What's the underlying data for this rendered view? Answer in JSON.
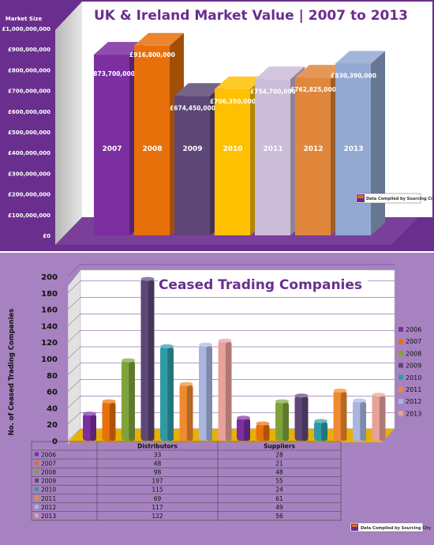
{
  "colors": {
    "frame_purple": "#6a2e8e",
    "panel_purple_light": "#a682c0",
    "year_colors": {
      "2006": "#7b2fa0",
      "2007": "#e8700a",
      "2008": "#7fa33a",
      "2009": "#5e4777",
      "2010": "#2f9aa6",
      "2011": "#f08a30",
      "2012": "#a9b6e0",
      "2013": "#e8a09a"
    }
  },
  "source_badge": "Data Compiled by Sourcing City",
  "chart_data": [
    {
      "type": "bar",
      "title": "UK & Ireland Market Value | 2007 to 2013",
      "ylabel": "Market Size",
      "categories": [
        "2007",
        "2008",
        "2009",
        "2010",
        "2011",
        "2012",
        "2013"
      ],
      "values": [
        873700000,
        916800000,
        674450000,
        706350000,
        754700000,
        762825000,
        830390000
      ],
      "data_labels": [
        "£873,700,000",
        "£916,800,000",
        "£674,450,000",
        "£706,350,000",
        "£754,700,000",
        "£762,825,000",
        "£830,390,000"
      ],
      "bar_colors": [
        "#7b2fa0",
        "#e8700a",
        "#5e4777",
        "#ffc000",
        "#cbbcd8",
        "#e0873c",
        "#93a9d2"
      ],
      "ylim": [
        0,
        1000000000
      ],
      "yticks": [
        "£0",
        "£100,000,000",
        "£200,000,000",
        "£300,000,000",
        "£400,000,000",
        "£500,000,000",
        "£600,000,000",
        "£700,000,000",
        "£800,000,000",
        "£900,000,000",
        "£1,000,000,000"
      ],
      "grid": false,
      "style": "3d"
    },
    {
      "type": "bar",
      "title": "Ceased Trading Companies",
      "ylabel": "No. of Ceased Trading Companies",
      "categories": [
        "Distributors",
        "Suppliers"
      ],
      "series": [
        {
          "name": "2006",
          "values": [
            33,
            28
          ]
        },
        {
          "name": "2007",
          "values": [
            48,
            21
          ]
        },
        {
          "name": "2008",
          "values": [
            98,
            48
          ]
        },
        {
          "name": "2009",
          "values": [
            197,
            55
          ]
        },
        {
          "name": "2010",
          "values": [
            115,
            24
          ]
        },
        {
          "name": "2011",
          "values": [
            69,
            61
          ]
        },
        {
          "name": "2012",
          "values": [
            117,
            49
          ]
        },
        {
          "name": "2013",
          "values": [
            122,
            56
          ]
        }
      ],
      "ylim": [
        0,
        200
      ],
      "yticks": [
        "0",
        "20",
        "40",
        "60",
        "80",
        "100",
        "120",
        "140",
        "160",
        "180",
        "200"
      ],
      "grid": true,
      "legend": "right",
      "data_table": true,
      "style": "3d"
    }
  ]
}
